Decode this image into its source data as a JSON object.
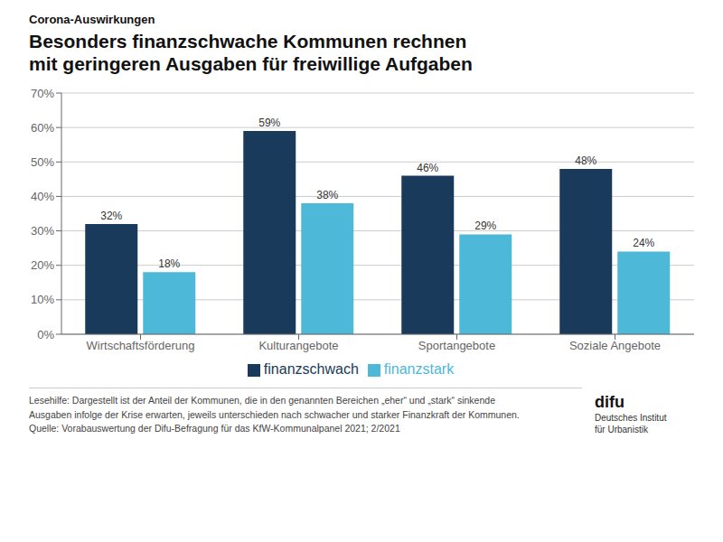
{
  "chart_data": {
    "type": "bar",
    "subtitle": "Corona-Auswirkungen",
    "title": "Besonders finanzschwache Kommunen rechnen\nmit geringeren Ausgaben für freiwillige Aufgaben",
    "categories": [
      "Wirtschaftsförderung",
      "Kulturangebote",
      "Sportangebote",
      "Soziale Angebote"
    ],
    "series": [
      {
        "name": "finanzschwach",
        "color": "#1a3a5c",
        "values": [
          32,
          59,
          46,
          48
        ],
        "value_labels": [
          "32%",
          "59%",
          "46%",
          "48%"
        ]
      },
      {
        "name": "finanzstark",
        "color": "#4db8d8",
        "values": [
          18,
          38,
          29,
          24
        ],
        "value_labels": [
          "18%",
          "38%",
          "29%",
          "24%"
        ]
      }
    ],
    "ylim": [
      0,
      70
    ],
    "yticks": [
      {
        "value": 0,
        "label": "0%"
      },
      {
        "value": 10,
        "label": "10%"
      },
      {
        "value": 20,
        "label": "20%"
      },
      {
        "value": 30,
        "label": "30%"
      },
      {
        "value": 40,
        "label": "40%"
      },
      {
        "value": 50,
        "label": "50%"
      },
      {
        "value": 60,
        "label": "60%"
      },
      {
        "value": 70,
        "label": "70%"
      }
    ],
    "grid": true,
    "legend": "bottom",
    "data_labels": true,
    "annotations": [
      "Lesehilfe: Dargestellt ist der Anteil der Kommunen, die in den genannten Bereichen „eher“ und „stark“ sinkende",
      "Ausgaben infolge der Krise erwarten, jeweils unterschieden nach schwacher und starker Finanzkraft der Kommunen.",
      "Quelle: Vorabauswertung der Difu-Befragung für das KfW-Kommunalpanel 2021; 2/2021",
      "difu",
      "Deutsches Institut\nfür Urbanistik"
    ]
  }
}
